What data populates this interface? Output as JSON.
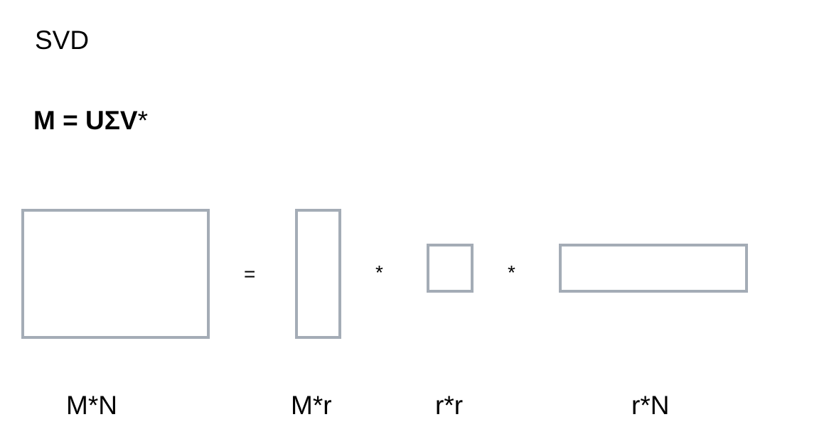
{
  "title": "SVD",
  "formula": {
    "lhs_and_factors": "M = UΣV",
    "conjugate_mark": "*"
  },
  "equation": {
    "equals": "=",
    "multiply_1": "*",
    "multiply_2": "*"
  },
  "matrices": {
    "m": {
      "dims": "M*N"
    },
    "u": {
      "dims": "M*r"
    },
    "sigma": {
      "dims": "r*r"
    },
    "v_star": {
      "dims": "r*N"
    }
  },
  "colors": {
    "box_border": "#a4acb6",
    "text": "#000000",
    "background": "#ffffff"
  }
}
